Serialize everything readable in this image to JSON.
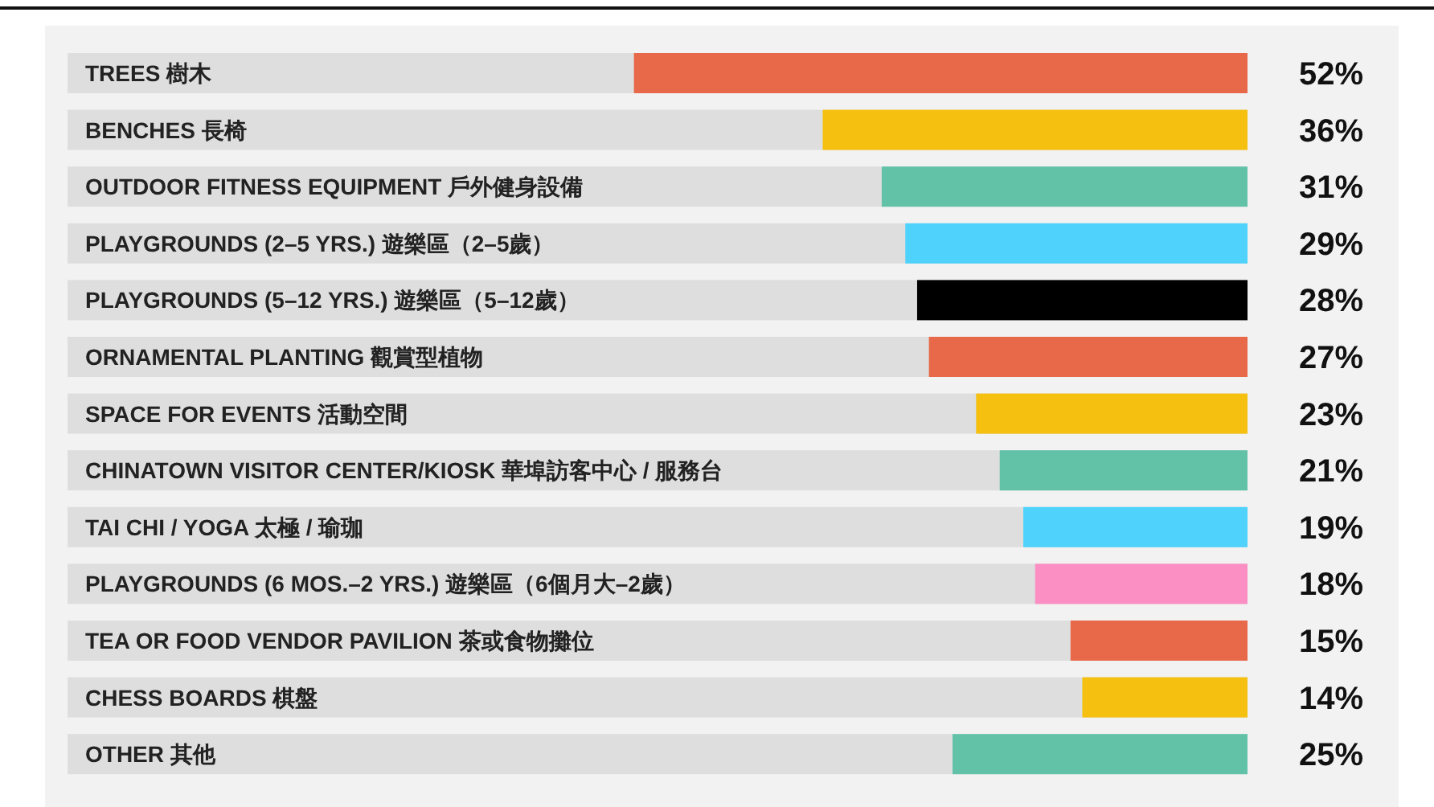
{
  "chart_data": {
    "type": "bar",
    "orientation": "horizontal",
    "categories": [
      "TREES 樹木",
      "BENCHES 長椅",
      "OUTDOOR FITNESS EQUIPMENT 戶外健身設備",
      "PLAYGROUNDS (2–5 YRS.) 遊樂區（2–5歲）",
      "PLAYGROUNDS (5–12 YRS.) 遊樂區（5–12歲）",
      "ORNAMENTAL PLANTING 觀賞型植物",
      "SPACE FOR EVENTS 活動空間",
      "CHINATOWN VISITOR CENTER/KIOSK 華埠訪客中心 / 服務台",
      "TAI CHI / YOGA 太極 / 瑜珈",
      "PLAYGROUNDS (6 MOS.–2 YRS.) 遊樂區（6個月大–2歲）",
      "TEA OR FOOD VENDOR PAVILION 茶或食物攤位",
      "CHESS BOARDS 棋盤",
      "OTHER 其他"
    ],
    "values": [
      52,
      36,
      31,
      29,
      28,
      27,
      23,
      21,
      19,
      18,
      15,
      14,
      25
    ],
    "colors": [
      "#e8694a",
      "#f5c00f",
      "#62c2a8",
      "#4fd2fb",
      "#000000",
      "#e8694a",
      "#f5c00f",
      "#62c2a8",
      "#4fd2fb",
      "#fb8fc4",
      "#e8694a",
      "#f5c00f",
      "#62c2a8"
    ],
    "value_labels": [
      "52%",
      "36%",
      "31%",
      "29%",
      "28%",
      "27%",
      "23%",
      "21%",
      "19%",
      "18%",
      "15%",
      "14%",
      "25%"
    ],
    "xlim": [
      100,
      0
    ]
  }
}
